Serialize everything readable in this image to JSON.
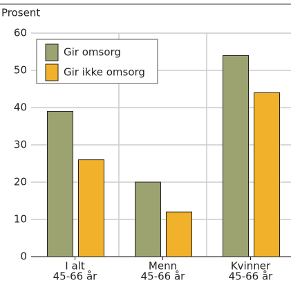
{
  "chart_data": {
    "type": "bar",
    "y_label": "Prosent",
    "categories": [
      [
        "I alt",
        "45-66 år"
      ],
      [
        "Menn",
        "45-66 år"
      ],
      [
        "Kvinner",
        "45-66 år"
      ]
    ],
    "series": [
      {
        "name": "Gir omsorg",
        "color": "#9ca370",
        "values": [
          39,
          20,
          54
        ]
      },
      {
        "name": "Gir ikke omsorg",
        "color": "#f2b12a",
        "values": [
          26,
          12,
          44
        ]
      }
    ],
    "ylim": [
      0,
      60
    ],
    "yticks": [
      0,
      10,
      20,
      30,
      40,
      50,
      60
    ],
    "grid": true
  }
}
